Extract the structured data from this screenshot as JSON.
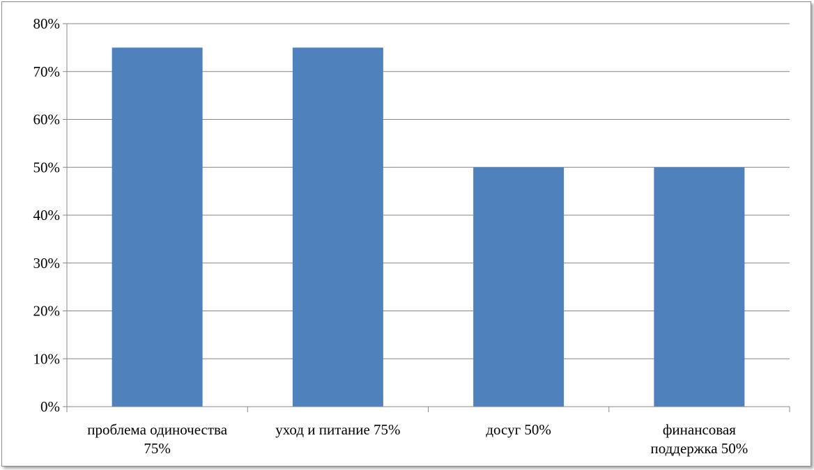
{
  "chart_data": {
    "type": "bar",
    "categories": [
      [
        "проблема одиночества",
        "75%"
      ],
      [
        "уход и питание  75%"
      ],
      [
        "досуг 50%"
      ],
      [
        "финансовая",
        "поддержка 50%"
      ]
    ],
    "values": [
      75,
      75,
      50,
      50
    ],
    "ylim": [
      0,
      80
    ],
    "yticks": [
      "0%",
      "10%",
      "20%",
      "30%",
      "40%",
      "50%",
      "60%",
      "70%",
      "80%"
    ],
    "ytick_values": [
      0,
      10,
      20,
      30,
      40,
      50,
      60,
      70,
      80
    ],
    "title": "",
    "xlabel": "",
    "ylabel": "",
    "grid": true,
    "legend": "none",
    "colors": {
      "bar": "#4f81bd",
      "grid": "#878787",
      "axis": "#878787"
    }
  }
}
